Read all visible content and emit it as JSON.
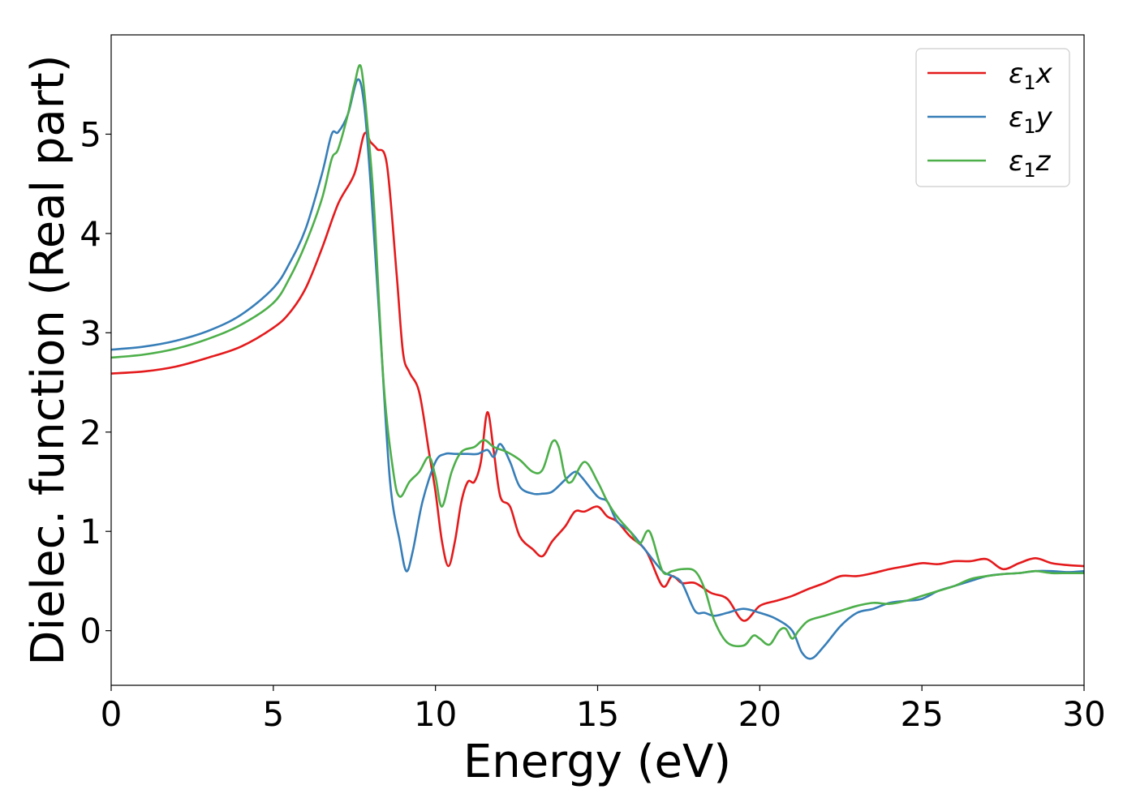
{
  "chart_data": {
    "type": "line",
    "title": "",
    "xlabel": "Energy (eV)",
    "ylabel": "Dielec. function (Real part)",
    "xlim": [
      0,
      30
    ],
    "ylim": [
      -0.55,
      6.0
    ],
    "xticks": [
      0,
      5,
      10,
      15,
      20,
      25,
      30
    ],
    "yticks": [
      0,
      1,
      2,
      3,
      4,
      5
    ],
    "grid": false,
    "legend_position": "top-right",
    "series": [
      {
        "name": "ε1x",
        "legend_base": "ε",
        "legend_sub": "1",
        "legend_suffix": "x",
        "color": "#e41a1c",
        "x": [
          0,
          1,
          2,
          3,
          4,
          5,
          5.5,
          6,
          6.5,
          7,
          7.5,
          7.8,
          8.0,
          8.2,
          8.5,
          8.8,
          9.0,
          9.2,
          9.5,
          9.8,
          10.0,
          10.2,
          10.4,
          10.6,
          10.8,
          11.0,
          11.2,
          11.4,
          11.6,
          11.8,
          12.0,
          12.3,
          12.6,
          13.0,
          13.3,
          13.6,
          14.0,
          14.3,
          14.6,
          15.0,
          15.3,
          15.6,
          16.0,
          16.5,
          17.0,
          17.3,
          17.6,
          18.0,
          18.5,
          19.0,
          19.5,
          20.0,
          20.5,
          21.0,
          21.5,
          22.0,
          22.5,
          23.0,
          23.5,
          24.0,
          24.5,
          25.0,
          25.5,
          26.0,
          26.5,
          27.0,
          27.5,
          28.0,
          28.5,
          29.0,
          29.5,
          30.0
        ],
        "y": [
          2.59,
          2.61,
          2.66,
          2.75,
          2.86,
          3.05,
          3.2,
          3.45,
          3.85,
          4.3,
          4.6,
          5.0,
          4.92,
          4.85,
          4.7,
          3.6,
          2.8,
          2.6,
          2.4,
          1.8,
          1.4,
          0.9,
          0.65,
          0.9,
          1.3,
          1.5,
          1.5,
          1.7,
          2.2,
          1.8,
          1.35,
          1.25,
          0.95,
          0.82,
          0.75,
          0.9,
          1.05,
          1.2,
          1.2,
          1.25,
          1.15,
          1.1,
          0.95,
          0.8,
          0.45,
          0.55,
          0.48,
          0.48,
          0.38,
          0.32,
          0.1,
          0.25,
          0.3,
          0.35,
          0.42,
          0.48,
          0.55,
          0.55,
          0.58,
          0.62,
          0.65,
          0.68,
          0.67,
          0.7,
          0.7,
          0.72,
          0.62,
          0.68,
          0.73,
          0.68,
          0.66,
          0.65
        ]
      },
      {
        "name": "ε1y",
        "legend_base": "ε",
        "legend_sub": "1",
        "legend_suffix": "y",
        "color": "#377eb8",
        "x": [
          0,
          1,
          2,
          3,
          4,
          5,
          5.5,
          6,
          6.5,
          6.8,
          7.0,
          7.3,
          7.6,
          7.8,
          8.0,
          8.3,
          8.6,
          8.9,
          9.1,
          9.3,
          9.6,
          10.0,
          10.3,
          10.6,
          11.0,
          11.3,
          11.6,
          11.8,
          12.0,
          12.3,
          12.6,
          13.0,
          13.3,
          13.6,
          14.0,
          14.3,
          14.5,
          15.0,
          15.3,
          15.6,
          16.0,
          16.5,
          17.0,
          17.3,
          17.6,
          18.0,
          18.3,
          18.6,
          19.0,
          19.5,
          20.0,
          20.5,
          21.0,
          21.3,
          21.6,
          22.0,
          22.5,
          23.0,
          23.5,
          24.0,
          24.5,
          25.0,
          25.5,
          26.0,
          26.5,
          27.0,
          27.5,
          28.0,
          28.5,
          29.0,
          29.5,
          30.0
        ],
        "y": [
          2.83,
          2.86,
          2.92,
          3.02,
          3.18,
          3.45,
          3.7,
          4.05,
          4.6,
          5.0,
          5.02,
          5.2,
          5.55,
          5.3,
          4.5,
          3.0,
          1.5,
          0.9,
          0.6,
          0.8,
          1.3,
          1.7,
          1.78,
          1.78,
          1.78,
          1.78,
          1.82,
          1.75,
          1.88,
          1.7,
          1.45,
          1.38,
          1.38,
          1.4,
          1.52,
          1.6,
          1.55,
          1.35,
          1.3,
          1.1,
          1.0,
          0.8,
          0.6,
          0.55,
          0.48,
          0.2,
          0.18,
          0.15,
          0.18,
          0.22,
          0.18,
          0.12,
          0.0,
          -0.22,
          -0.28,
          -0.15,
          0.05,
          0.18,
          0.22,
          0.28,
          0.3,
          0.32,
          0.4,
          0.45,
          0.5,
          0.55,
          0.57,
          0.58,
          0.6,
          0.6,
          0.59,
          0.6
        ]
      },
      {
        "name": "ε1z",
        "legend_base": "ε",
        "legend_sub": "1",
        "legend_suffix": "z",
        "color": "#4daf4a",
        "x": [
          0,
          1,
          2,
          3,
          4,
          5,
          5.5,
          6,
          6.5,
          6.8,
          7.0,
          7.3,
          7.5,
          7.7,
          7.9,
          8.1,
          8.4,
          8.7,
          8.9,
          9.2,
          9.5,
          9.8,
          10.0,
          10.2,
          10.5,
          10.8,
          11.2,
          11.5,
          11.8,
          12.2,
          12.6,
          13.0,
          13.3,
          13.6,
          13.8,
          14.0,
          14.2,
          14.6,
          15.0,
          15.3,
          15.6,
          16.0,
          16.3,
          16.6,
          17.0,
          17.3,
          17.6,
          18.0,
          18.3,
          18.6,
          19.0,
          19.5,
          19.8,
          20.0,
          20.3,
          20.6,
          20.8,
          21.0,
          21.2,
          21.5,
          22.0,
          22.5,
          23.0,
          23.5,
          24.0,
          24.5,
          25.0,
          25.5,
          26.0,
          26.5,
          27.0,
          27.5,
          28.0,
          28.5,
          29.0,
          29.5,
          30.0
        ],
        "y": [
          2.75,
          2.78,
          2.84,
          2.94,
          3.08,
          3.3,
          3.55,
          3.9,
          4.35,
          4.75,
          4.85,
          5.2,
          5.5,
          5.68,
          5.1,
          4.3,
          2.5,
          1.6,
          1.35,
          1.5,
          1.6,
          1.75,
          1.55,
          1.25,
          1.6,
          1.8,
          1.85,
          1.92,
          1.85,
          1.8,
          1.72,
          1.6,
          1.62,
          1.9,
          1.85,
          1.55,
          1.5,
          1.7,
          1.5,
          1.3,
          1.15,
          1.0,
          0.88,
          1.0,
          0.6,
          0.6,
          0.62,
          0.6,
          0.42,
          0.1,
          -0.12,
          -0.15,
          -0.05,
          -0.08,
          -0.14,
          0.0,
          0.02,
          -0.08,
          0.0,
          0.1,
          0.15,
          0.2,
          0.25,
          0.28,
          0.27,
          0.3,
          0.35,
          0.4,
          0.45,
          0.52,
          0.55,
          0.57,
          0.58,
          0.6,
          0.58,
          0.58,
          0.58
        ]
      }
    ]
  }
}
